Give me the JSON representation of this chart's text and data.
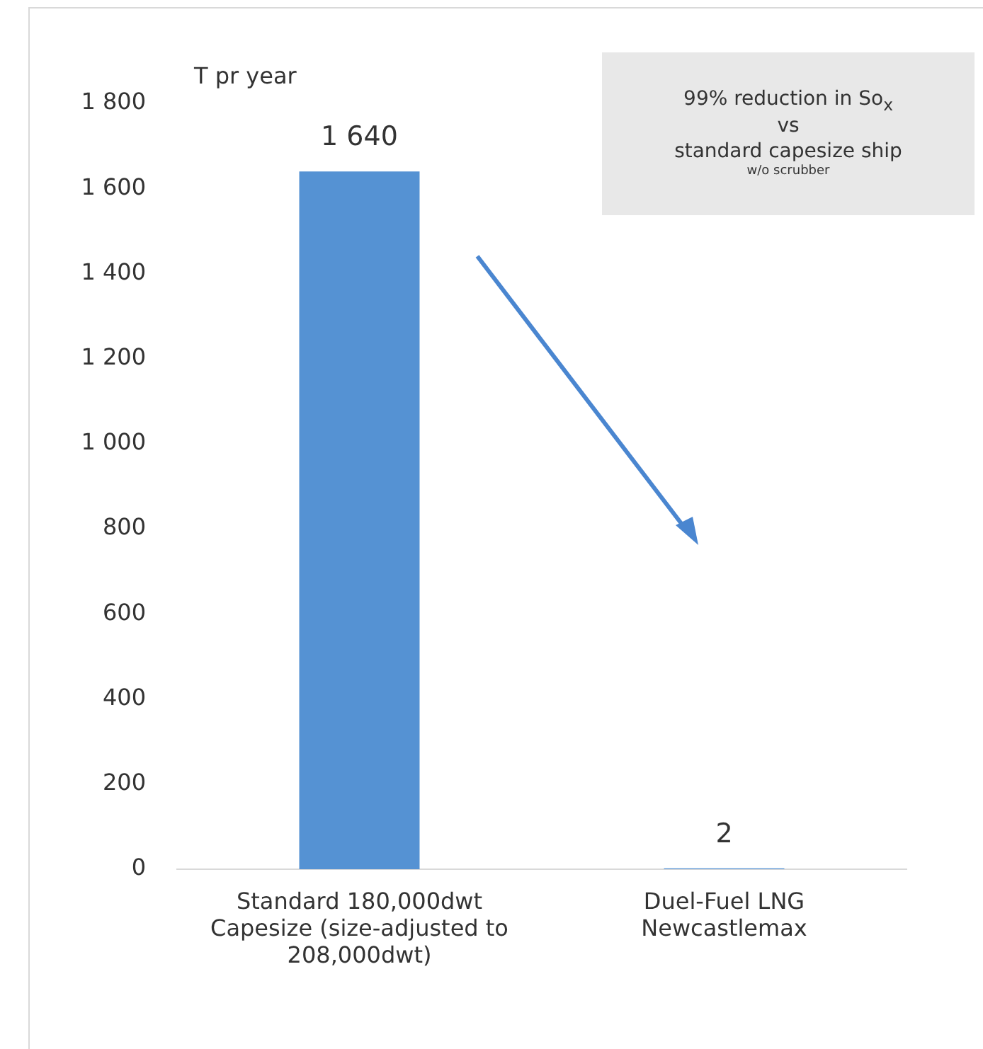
{
  "chart_data": {
    "type": "bar",
    "ylabel": "T pr year",
    "categories": [
      "Standard 180,000dwt Capesize (size-adjusted to 208,000dwt)",
      "Duel-Fuel LNG Newcastlemax"
    ],
    "values": [
      1640,
      2
    ],
    "color": "#5592d3",
    "value_labels": [
      "1 640",
      "2"
    ],
    "ylim": [
      0,
      1800
    ],
    "yticks": [
      0,
      200,
      400,
      600,
      800,
      {
        "value": 1000,
        "label": "1 000"
      },
      {
        "value": 1200,
        "label": "1 200"
      },
      {
        "value": 1400,
        "label": "1 400"
      },
      {
        "value": 1600,
        "label": "1 600"
      },
      {
        "value": 1800,
        "label": "1 800"
      }
    ],
    "grid": false,
    "legend": false,
    "annotations": [
      "99% reduction in So$_{x}$",
      "vs",
      "standard capesize ship",
      "w/o scrubber"
    ]
  }
}
